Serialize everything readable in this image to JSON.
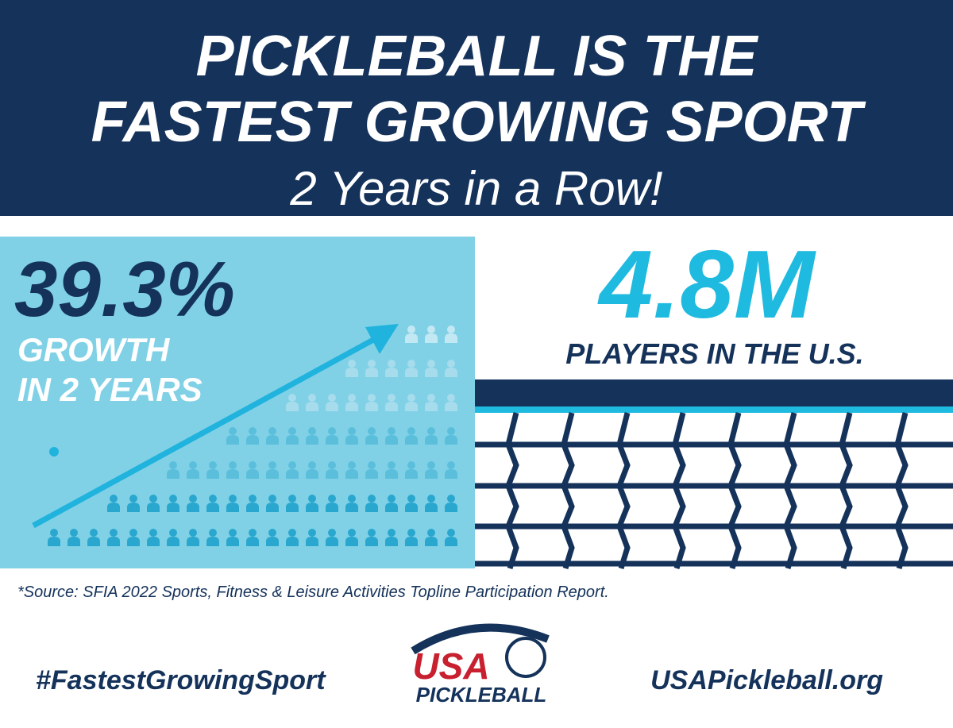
{
  "header": {
    "title_line1": "PICKLEBALL IS THE",
    "title_line2": "FASTEST GROWING SPORT",
    "subtitle": "2 Years in a Row!"
  },
  "stats": [
    {
      "value": "39.3%",
      "label_line1": "GROWTH",
      "label_line2": "IN 2 YEARS"
    },
    {
      "value": "4.8M",
      "label_line1": "PLAYERS IN THE U.S."
    }
  ],
  "source": "*Source: SFIA 2022 Sports, Fitness & Leisure Activities Topline Participation Report.",
  "footer": {
    "hashtag": "#FastestGrowingSport",
    "logo_top": "USA",
    "logo_bottom": "PICKLEBALL",
    "url": "USAPickleball.org"
  }
}
